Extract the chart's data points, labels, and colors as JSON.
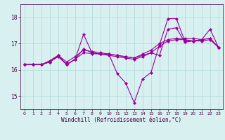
{
  "xlabel": "Windchill (Refroidissement éolien,°C)",
  "x": [
    0,
    1,
    2,
    3,
    4,
    5,
    6,
    7,
    8,
    9,
    10,
    11,
    12,
    13,
    14,
    15,
    16,
    17,
    18,
    19,
    20,
    21,
    22,
    23
  ],
  "series": [
    [
      16.2,
      16.2,
      16.2,
      16.3,
      16.55,
      16.2,
      16.4,
      17.35,
      16.65,
      16.6,
      16.55,
      16.5,
      16.45,
      16.4,
      16.5,
      16.65,
      16.55,
      17.55,
      17.6,
      17.05,
      17.1,
      17.15,
      17.55,
      16.85
    ],
    [
      16.2,
      16.2,
      16.2,
      16.3,
      16.55,
      16.2,
      16.4,
      16.8,
      16.65,
      16.6,
      16.6,
      15.85,
      15.5,
      14.75,
      15.65,
      15.9,
      16.95,
      17.95,
      17.95,
      17.1,
      17.1,
      17.15,
      17.2,
      16.85
    ],
    [
      16.2,
      16.2,
      16.2,
      16.35,
      16.55,
      16.3,
      16.5,
      16.75,
      16.7,
      16.65,
      16.6,
      16.55,
      16.5,
      16.45,
      16.6,
      16.75,
      17.0,
      17.15,
      17.2,
      17.2,
      17.2,
      17.15,
      17.2,
      16.85
    ],
    [
      16.2,
      16.2,
      16.2,
      16.3,
      16.5,
      16.2,
      16.4,
      16.65,
      16.62,
      16.6,
      16.6,
      16.55,
      16.5,
      16.45,
      16.55,
      16.65,
      16.9,
      17.1,
      17.15,
      17.15,
      17.1,
      17.1,
      17.15,
      16.85
    ]
  ],
  "line_color": "#990099",
  "marker": "D",
  "markersize": 2.0,
  "linewidth": 0.8,
  "bg_color": "#d8f0f0",
  "grid_color": "#afd8d8",
  "ylim": [
    14.5,
    18.5
  ],
  "yticks": [
    15,
    16,
    17,
    18
  ],
  "xlim": [
    -0.5,
    23.5
  ],
  "xticks": [
    0,
    1,
    2,
    3,
    4,
    5,
    6,
    7,
    8,
    9,
    10,
    11,
    12,
    13,
    14,
    15,
    16,
    17,
    18,
    19,
    20,
    21,
    22,
    23
  ]
}
